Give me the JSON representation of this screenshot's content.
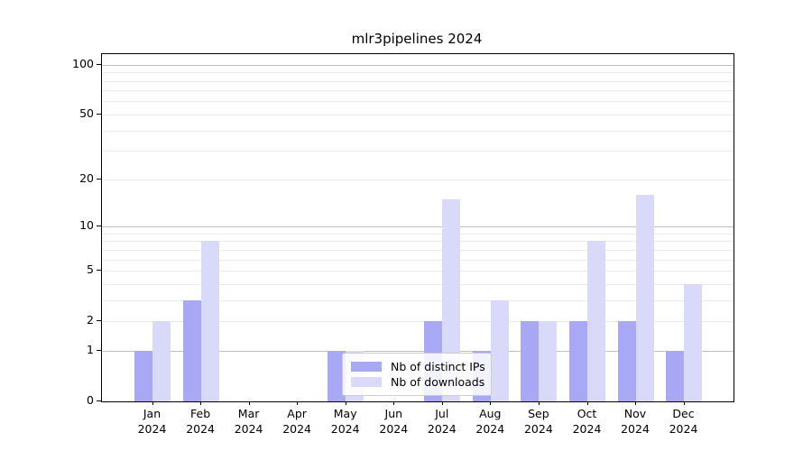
{
  "chart_data": {
    "type": "bar",
    "title": "mlr3pipelines 2024",
    "categories": [
      "Jan 2024",
      "Feb 2024",
      "Mar 2024",
      "Apr 2024",
      "May 2024",
      "Jun 2024",
      "Jul 2024",
      "Aug 2024",
      "Sep 2024",
      "Oct 2024",
      "Nov 2024",
      "Dec 2024"
    ],
    "series": [
      {
        "name": "Nb of distinct IPs",
        "color": "#a8a8f5",
        "values": [
          1,
          3,
          0,
          0,
          1,
          0,
          2,
          1,
          2,
          2,
          2,
          1
        ]
      },
      {
        "name": "Nb of downloads",
        "color": "#d9d9fa",
        "values": [
          2,
          8,
          0,
          0,
          1,
          0,
          15,
          3,
          2,
          8,
          16,
          4
        ]
      }
    ],
    "xlabel": "",
    "ylabel": "",
    "y_scale": "log1p",
    "ylim": [
      0,
      115
    ],
    "y_tick_labels": [
      100,
      50,
      20,
      10,
      5,
      2,
      1,
      0
    ],
    "y_major_gridlines": [
      1,
      10,
      100
    ],
    "y_minor_gridlines": [
      2,
      3,
      4,
      5,
      6,
      7,
      8,
      9,
      20,
      30,
      40,
      50,
      60,
      70,
      80,
      90
    ],
    "grid": true,
    "legend_position": "lower center",
    "colors": {
      "axis": "#000000",
      "major_grid": "#c0c0c0",
      "minor_grid": "#ebebeb",
      "background": "#ffffff",
      "legend_border": "#cccccc"
    }
  }
}
